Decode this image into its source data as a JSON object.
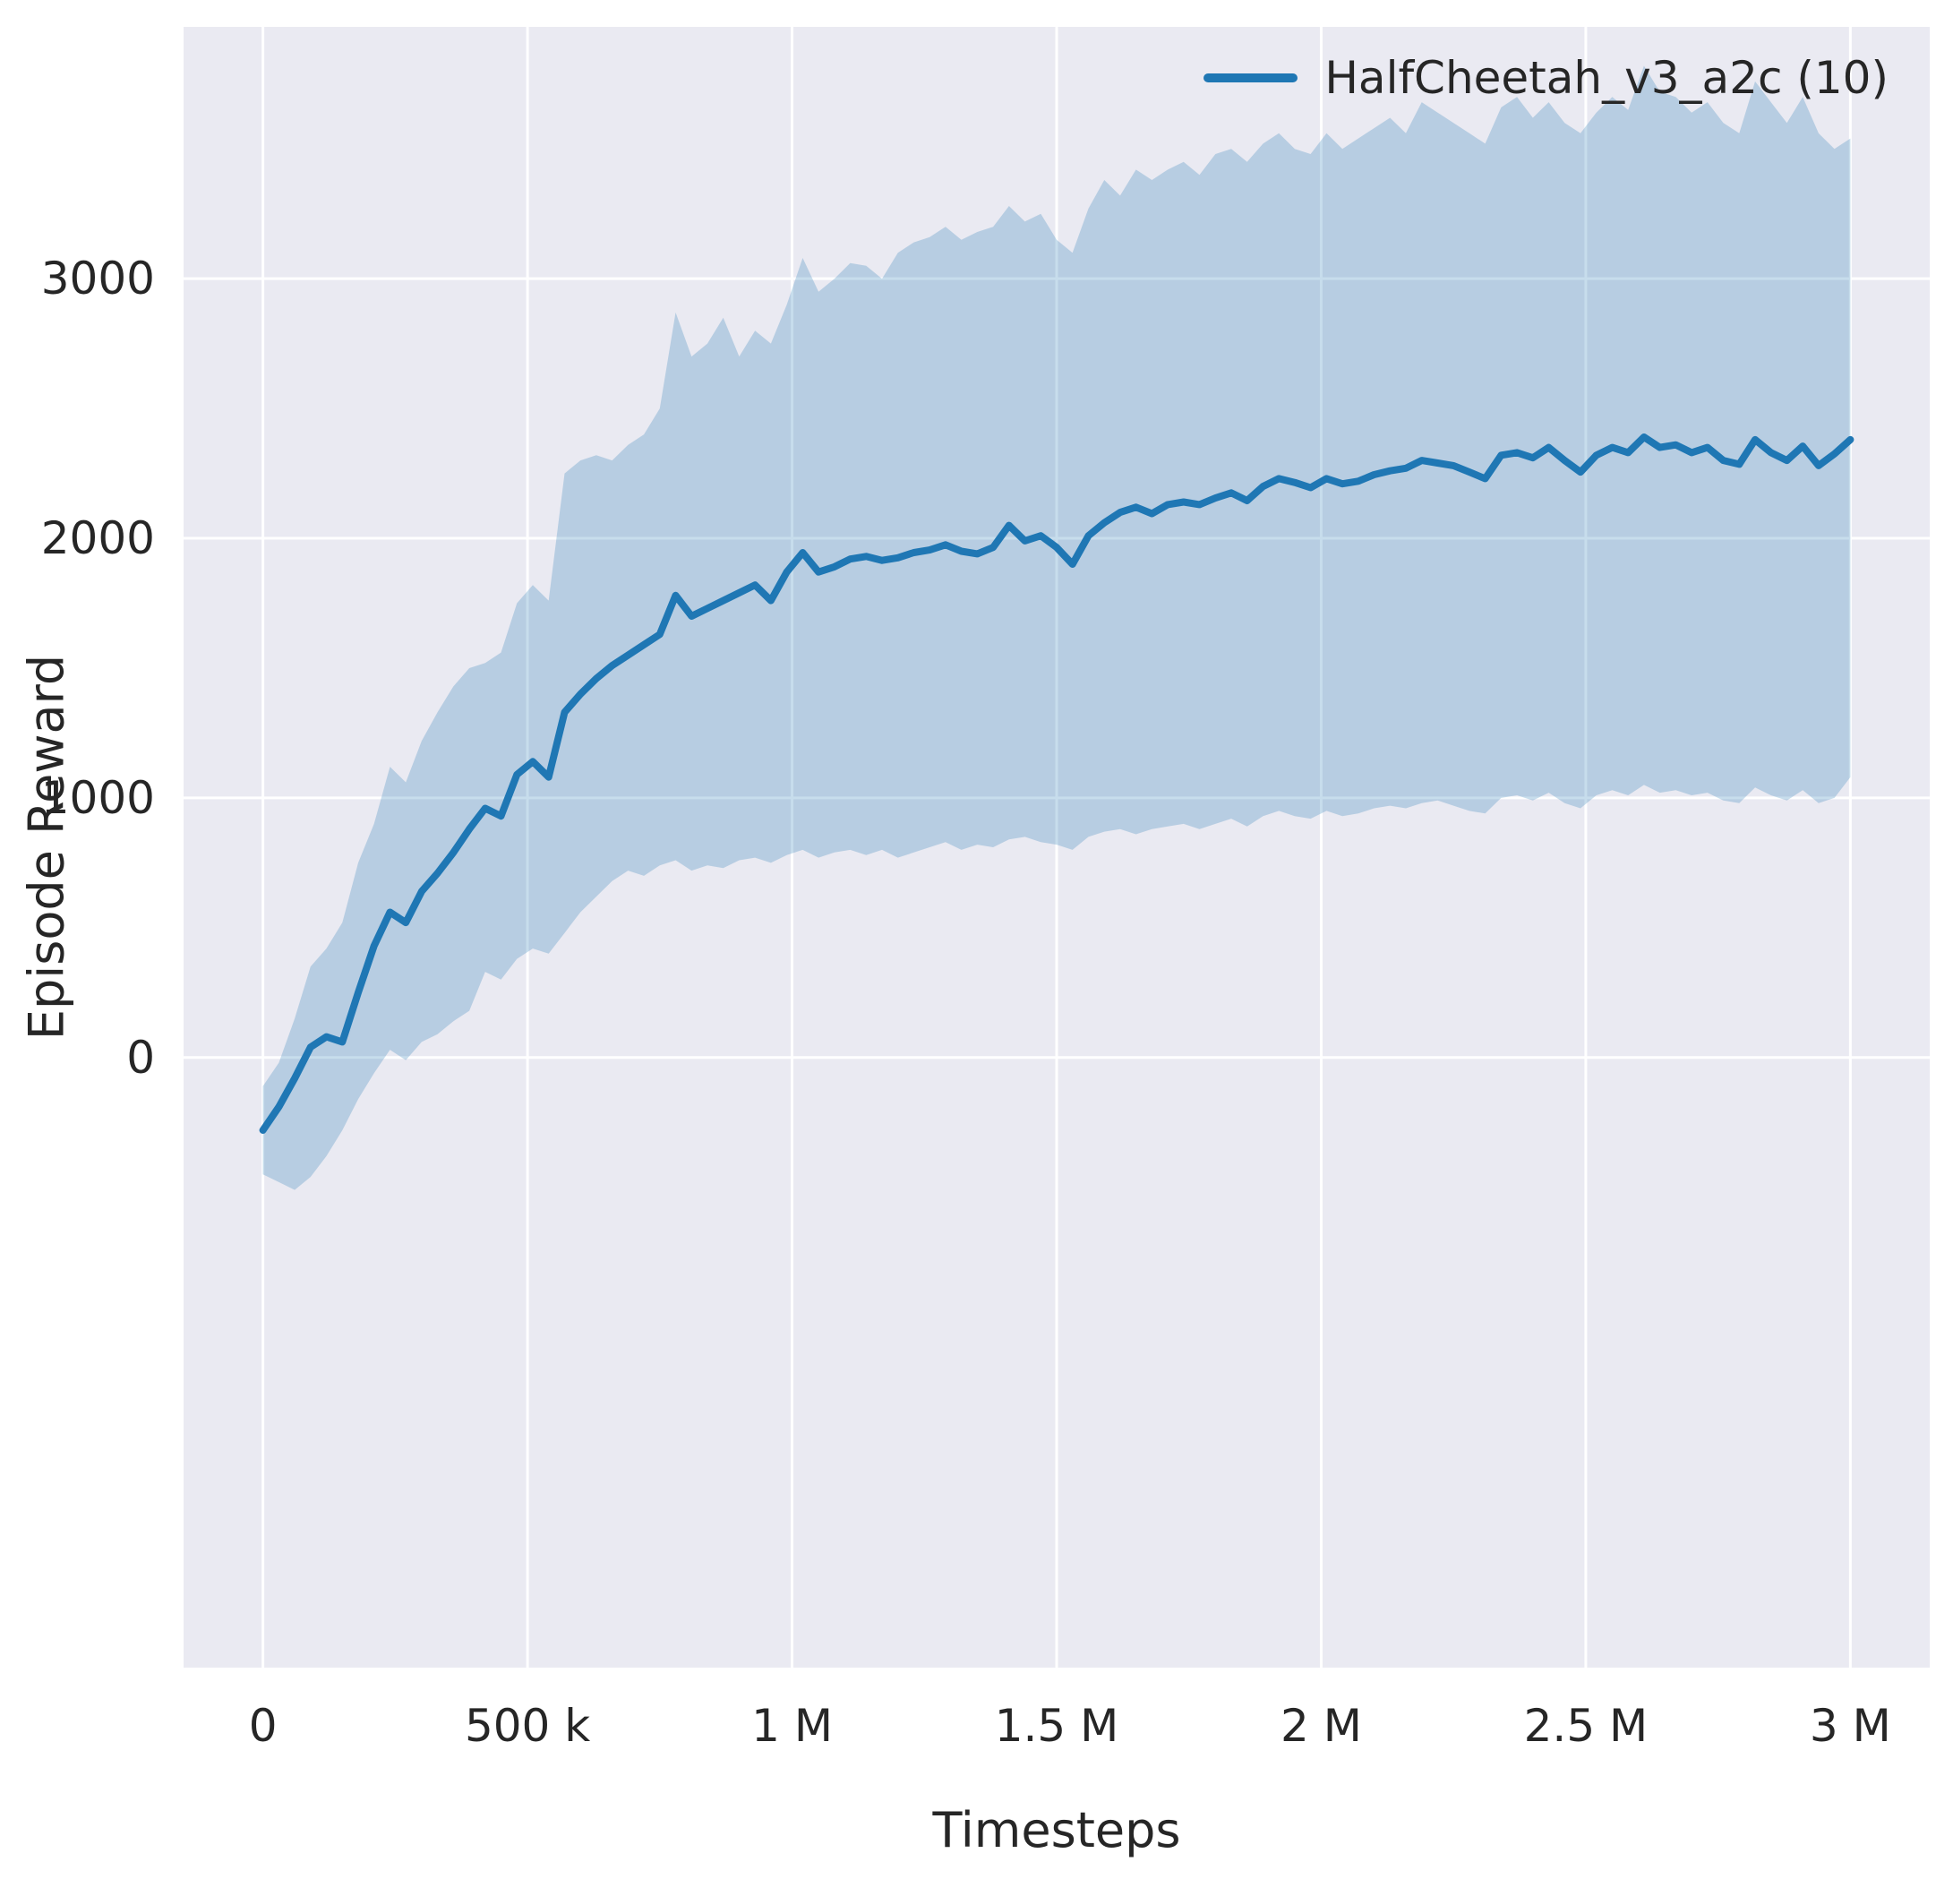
{
  "style": {
    "figure_bg": "#ffffff",
    "axes_bg": "#eaeaf2",
    "grid_color": "#ffffff",
    "text_color": "#262626",
    "line_color": "#1f77b4",
    "band_fill": "rgba(31,119,180,0.25)"
  },
  "chart_data": {
    "type": "line",
    "title": "",
    "xlabel": "Timesteps",
    "ylabel": "Episode Reward",
    "grid": true,
    "legend_position": "upper right",
    "xlim": [
      -150000,
      3150000
    ],
    "ylim": [
      -2350,
      3970
    ],
    "x_unit_multiplier": 1000,
    "xticks": {
      "values": [
        0,
        500000,
        1000000,
        1500000,
        2000000,
        2500000,
        3000000
      ],
      "labels": [
        "0",
        "500 k",
        "1 M",
        "1.5 M",
        "2 M",
        "2.5 M",
        "3 M"
      ]
    },
    "yticks": {
      "values": [
        0,
        1000,
        2000,
        3000
      ],
      "labels": [
        "0",
        "1000",
        "2000",
        "3000"
      ]
    },
    "series": [
      {
        "name": "HalfCheetah_v3_a2c (10)",
        "color": "#1f77b4",
        "band_fill": "rgba(31,119,180,0.25)",
        "x_thousands": [
          0,
          30,
          60,
          90,
          120,
          150,
          180,
          210,
          240,
          270,
          300,
          330,
          360,
          390,
          420,
          450,
          480,
          510,
          540,
          570,
          600,
          630,
          660,
          690,
          720,
          750,
          780,
          810,
          840,
          870,
          900,
          930,
          960,
          990,
          1020,
          1050,
          1080,
          1110,
          1140,
          1170,
          1200,
          1230,
          1260,
          1290,
          1320,
          1350,
          1380,
          1410,
          1440,
          1470,
          1500,
          1530,
          1560,
          1590,
          1620,
          1650,
          1680,
          1710,
          1740,
          1770,
          1800,
          1830,
          1860,
          1890,
          1920,
          1950,
          1980,
          2010,
          2040,
          2070,
          2100,
          2130,
          2160,
          2190,
          2220,
          2250,
          2280,
          2310,
          2340,
          2370,
          2400,
          2430,
          2460,
          2490,
          2520,
          2550,
          2580,
          2610,
          2640,
          2670,
          2700,
          2730,
          2760,
          2790,
          2820,
          2850,
          2880,
          2910,
          2940,
          2970,
          3000
        ],
        "mean": [
          -280,
          -190,
          -80,
          40,
          80,
          60,
          250,
          430,
          560,
          520,
          640,
          710,
          790,
          880,
          960,
          930,
          1090,
          1140,
          1080,
          1330,
          1400,
          1460,
          1510,
          1550,
          1590,
          1630,
          1780,
          1700,
          1730,
          1760,
          1790,
          1820,
          1760,
          1870,
          1945,
          1870,
          1890,
          1920,
          1930,
          1915,
          1925,
          1945,
          1955,
          1975,
          1950,
          1940,
          1965,
          2050,
          1990,
          2010,
          1965,
          1900,
          2010,
          2060,
          2100,
          2120,
          2095,
          2130,
          2140,
          2130,
          2155,
          2175,
          2145,
          2200,
          2230,
          2215,
          2195,
          2230,
          2210,
          2220,
          2245,
          2260,
          2270,
          2300,
          2290,
          2280,
          2255,
          2230,
          2320,
          2330,
          2310,
          2350,
          2300,
          2255,
          2320,
          2350,
          2330,
          2390,
          2350,
          2360,
          2330,
          2350,
          2300,
          2285,
          2380,
          2330,
          2300,
          2355,
          2280,
          2325,
          2380
        ],
        "band_lower": [
          -450,
          -480,
          -510,
          -460,
          -380,
          -280,
          -160,
          -60,
          30,
          -10,
          60,
          90,
          140,
          180,
          330,
          300,
          380,
          420,
          400,
          480,
          560,
          620,
          680,
          720,
          700,
          740,
          760,
          720,
          740,
          730,
          760,
          770,
          750,
          780,
          800,
          770,
          790,
          800,
          780,
          800,
          770,
          790,
          810,
          830,
          800,
          820,
          810,
          840,
          850,
          830,
          820,
          800,
          850,
          870,
          880,
          860,
          880,
          890,
          900,
          880,
          900,
          920,
          890,
          930,
          950,
          930,
          920,
          950,
          930,
          940,
          960,
          970,
          960,
          980,
          990,
          970,
          950,
          940,
          1000,
          1010,
          990,
          1020,
          980,
          960,
          1010,
          1030,
          1010,
          1050,
          1020,
          1030,
          1010,
          1020,
          990,
          980,
          1040,
          1010,
          990,
          1030,
          980,
          1000,
          1080
        ],
        "band_upper": [
          -110,
          -20,
          150,
          350,
          420,
          520,
          750,
          900,
          1120,
          1060,
          1220,
          1330,
          1430,
          1500,
          1520,
          1560,
          1750,
          1820,
          1760,
          2250,
          2300,
          2320,
          2300,
          2360,
          2400,
          2500,
          2870,
          2700,
          2750,
          2850,
          2700,
          2800,
          2750,
          2900,
          3080,
          2950,
          3000,
          3060,
          3050,
          3000,
          3100,
          3140,
          3160,
          3200,
          3150,
          3180,
          3200,
          3280,
          3220,
          3250,
          3150,
          3100,
          3270,
          3380,
          3320,
          3420,
          3380,
          3420,
          3450,
          3400,
          3480,
          3500,
          3450,
          3520,
          3560,
          3500,
          3480,
          3560,
          3500,
          3540,
          3580,
          3620,
          3560,
          3680,
          3640,
          3600,
          3560,
          3520,
          3660,
          3700,
          3620,
          3680,
          3600,
          3560,
          3640,
          3700,
          3650,
          3820,
          3720,
          3700,
          3640,
          3680,
          3600,
          3560,
          3760,
          3680,
          3600,
          3700,
          3560,
          3500,
          3540
        ]
      }
    ]
  }
}
